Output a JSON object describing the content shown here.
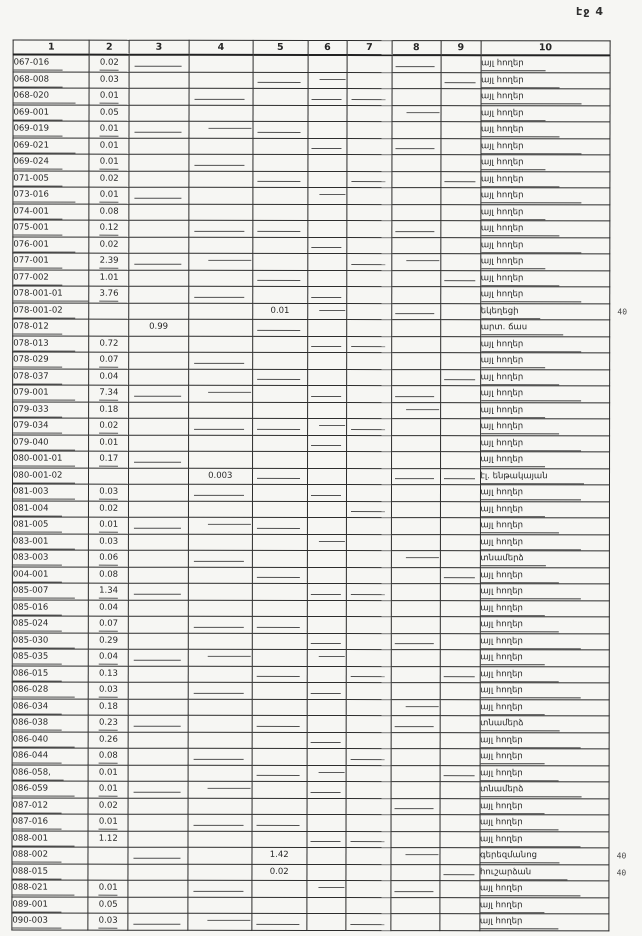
{
  "page": {
    "label": "էջ 4"
  },
  "table": {
    "columns": [
      "1",
      "2",
      "3",
      "4",
      "5",
      "6",
      "7",
      "8",
      "9",
      "10"
    ],
    "rows": [
      {
        "c1": "067-016",
        "c2": "0.02",
        "c10": "այլ հողեր"
      },
      {
        "c1": "068-008",
        "c2": "0.03",
        "c10": "այլ հողեր"
      },
      {
        "c1": "068-020",
        "c2": "0.01",
        "c10": "այլ հողեր"
      },
      {
        "c1": "069-001",
        "c2": "0.05",
        "c10": "այլ հողեր"
      },
      {
        "c1": "069-019",
        "c2": "0.01",
        "c10": "այլ հողեր"
      },
      {
        "c1": "069-021",
        "c2": "0.01",
        "c10": "այլ հողեր"
      },
      {
        "c1": "069-024",
        "c2": "0.01",
        "c10": "այլ հողեր"
      },
      {
        "c1": "071-005",
        "c2": "0.02",
        "c10": "այլ հողեր"
      },
      {
        "c1": "073-016",
        "c2": "0.01",
        "c10": "այլ հողեր"
      },
      {
        "c1": "074-001",
        "c2": "0.08",
        "c10": "այլ հողեր"
      },
      {
        "c1": "075-001",
        "c2": "0.12",
        "c10": "այլ հողեր"
      },
      {
        "c1": "076-001",
        "c2": "0.02",
        "c10": "այլ հողեր"
      },
      {
        "c1": "077-001",
        "c2": "2.39",
        "c10": "այլ հողեր"
      },
      {
        "c1": "077-002",
        "c2": "1.01",
        "c10": "այլ հողեր"
      },
      {
        "c1": "078-001-01",
        "c2": "3.76",
        "c10": "այլ հողեր"
      },
      {
        "c1": "078-001-02",
        "c5": "0.01",
        "c10": "եկեղեցի",
        "margin": "40"
      },
      {
        "c1": "078-012",
        "c3": "0.99",
        "c10": "արտ. ճաս"
      },
      {
        "c1": "078-013",
        "c2": "0.72",
        "c10": "այլ հողեր"
      },
      {
        "c1": "078-029",
        "c2": "0.07",
        "c10": "այլ հողեր"
      },
      {
        "c1": "078-037",
        "c2": "0.04",
        "c10": "այլ հողեր"
      },
      {
        "c1": "079-001",
        "c2": "7.34",
        "c10": "այլ հողեր"
      },
      {
        "c1": "079-033",
        "c2": "0.18",
        "c10": "այլ հողեր"
      },
      {
        "c1": "079-034",
        "c2": "0.02",
        "c10": "այլ հողեր"
      },
      {
        "c1": "079-040",
        "c2": "0.01",
        "c10": "այլ հողեր"
      },
      {
        "c1": "080-001-01",
        "c2": "0.17",
        "c10": "այլ հողեր"
      },
      {
        "c1": "080-001-02",
        "c4": "0.003",
        "c10": "էլ. ենթակայան"
      },
      {
        "c1": "081-003",
        "c2": "0.03",
        "c10": "այլ հողեր"
      },
      {
        "c1": "081-004",
        "c2": "0.02",
        "c10": "այլ հողեր"
      },
      {
        "c1": "081-005",
        "c2": "0.01",
        "c10": "այլ հողեր"
      },
      {
        "c1": "083-001",
        "c2": "0.03",
        "c10": "այլ հողեր"
      },
      {
        "c1": "083-003",
        "c2": "0.06",
        "c10": "տնամերձ"
      },
      {
        "c1": "004-001",
        "c2": "0.08",
        "c10": "այլ հողեր"
      },
      {
        "c1": "085-007",
        "c2": "1.34",
        "c10": "այլ հողեր"
      },
      {
        "c1": "085-016",
        "c2": "0.04",
        "c10": "այլ հողեր"
      },
      {
        "c1": "085-024",
        "c2": "0.07",
        "c10": "այլ հողեր"
      },
      {
        "c1": "085-030",
        "c2": "0.29",
        "c10": "այլ հողեր"
      },
      {
        "c1": "085-035",
        "c2": "0.04",
        "c10": "այլ հողեր"
      },
      {
        "c1": "086-015",
        "c2": "0.13",
        "c10": "այլ հողեր"
      },
      {
        "c1": "086-028",
        "c2": "0.03",
        "c10": "այլ հողեր"
      },
      {
        "c1": "086-034",
        "c2": "0.18",
        "c10": "այլ հողեր"
      },
      {
        "c1": "086-038",
        "c2": "0.23",
        "c10": "տնամերձ"
      },
      {
        "c1": "086-040",
        "c2": "0.26",
        "c10": "այլ հողեր"
      },
      {
        "c1": "086-044",
        "c2": "0.08",
        "c10": "այլ հողեր"
      },
      {
        "c1": "086-058,",
        "c2": "0.01",
        "c10": "այլ հողեր"
      },
      {
        "c1": "086-059",
        "c2": "0.01",
        "c10": "տնամերձ"
      },
      {
        "c1": "087-012",
        "c2": "0.02",
        "c10": "այլ հողեր"
      },
      {
        "c1": "087-016",
        "c2": "0.01",
        "c10": "այլ հողեր"
      },
      {
        "c1": "088-001",
        "c2": "1.12",
        "c10": "այլ հողեր"
      },
      {
        "c1": "088-002",
        "c5": "1.42",
        "c10": "գերեզմանոց",
        "margin": "40"
      },
      {
        "c1": "088-015",
        "c5": "0.02",
        "c10": "հուշարձան",
        "margin": "40"
      },
      {
        "c1": "088-021",
        "c2": "0.01",
        "c10": "այլ հողեր"
      },
      {
        "c1": "089-001",
        "c2": "0.05",
        "c10": "այլ հողեր"
      },
      {
        "c1": "090-003",
        "c2": "0.03",
        "c10": "այլ հողեր"
      }
    ]
  }
}
